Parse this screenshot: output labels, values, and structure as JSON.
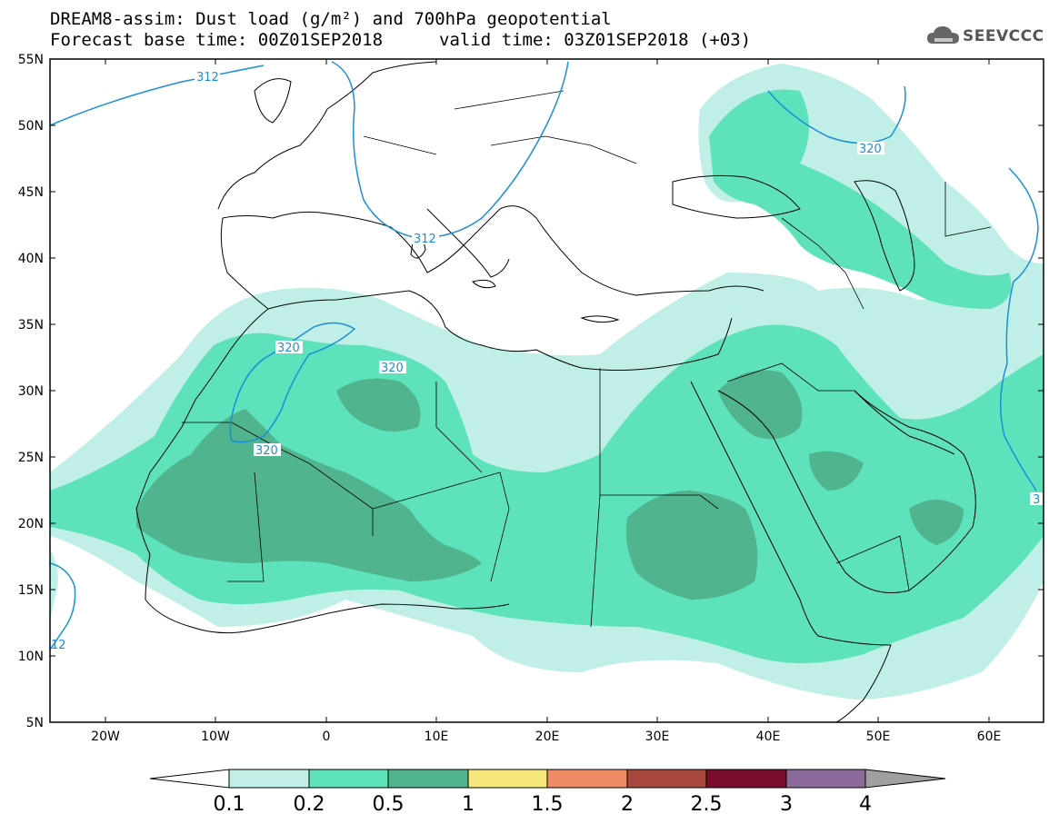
{
  "title": {
    "line1": "DREAM8-assim: Dust load (g/m²) and 700hPa geopotential",
    "line2": "Forecast base time: 00Z01SEP2018",
    "valid": "valid time: 03Z01SEP2018 (+03)"
  },
  "logo": {
    "text": "SEEVCCC",
    "icon": "cloud-icon"
  },
  "colors": {
    "c1": "#c0efe8",
    "c2": "#5ee2bc",
    "c3": "#50b48e",
    "c4": "#f5e77a",
    "c5": "#ee8b64",
    "c6": "#a8483c",
    "c7": "#7a0c2c",
    "c8": "#8c6a9c",
    "c9": "#a0a0a0",
    "contour": "#1a8fd8"
  },
  "axes": {
    "x_ticks": [
      "20W",
      "10W",
      "0",
      "10E",
      "20E",
      "30E",
      "40E",
      "50E",
      "60E"
    ],
    "y_ticks": [
      "55N",
      "50N",
      "45N",
      "40N",
      "35N",
      "30N",
      "25N",
      "20N",
      "15N",
      "10N",
      "5N"
    ]
  },
  "contours": {
    "labels": [
      "312",
      "312",
      "320",
      "320",
      "320",
      "320",
      "12",
      "3"
    ]
  },
  "colorbar": {
    "labels": [
      "0.1",
      "0.2",
      "0.5",
      "1",
      "1.5",
      "2",
      "2.5",
      "3",
      "4"
    ]
  }
}
